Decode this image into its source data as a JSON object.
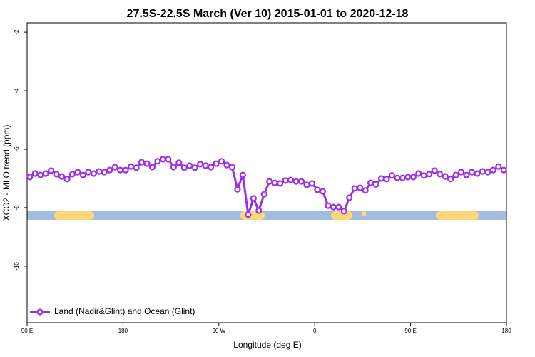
{
  "chart_data": {
    "type": "line",
    "title": "27.5S-22.5S March (Ver 10)   2015-01-01 to 2020-12-18",
    "x_label": "Longitude (deg E)",
    "y_label": "XCO2 - MLO trend (ppm)",
    "xlim": [
      90,
      540
    ],
    "ylim": [
      -11.93,
      -1.68
    ],
    "xticks": [
      {
        "value": 90,
        "label": "90 E"
      },
      180,
      {
        "value": 270,
        "label": "90 W"
      },
      {
        "value": 360,
        "label": "0"
      },
      {
        "value": 450,
        "label": "90 E"
      },
      {
        "value": 540,
        "label": "180"
      }
    ],
    "yticks": [
      -2,
      -4,
      -6,
      -8,
      -10
    ],
    "legend": "bottom-left",
    "x": [
      92.5,
      97.5,
      102.5,
      107.5,
      112.5,
      117.5,
      122.5,
      127.5,
      132.5,
      137.5,
      142.5,
      147.5,
      152.5,
      157.5,
      162.5,
      167.5,
      172.5,
      177.5,
      182.5,
      187.5,
      192.5,
      197.5,
      202.5,
      207.5,
      212.5,
      217.5,
      222.5,
      227.5,
      232.5,
      237.5,
      242.5,
      247.5,
      252.5,
      257.5,
      262.5,
      267.5,
      272.5,
      277.5,
      282.5,
      287.5,
      292.5,
      297.5,
      302.5,
      307.5,
      312.5,
      317.5,
      322.5,
      327.5,
      332.5,
      337.5,
      342.5,
      347.5,
      352.5,
      357.5,
      362.5,
      367.5,
      372.5,
      377.5,
      382.5,
      387.5,
      392.5,
      397.5,
      402.5,
      407.5,
      412.5,
      417.5,
      422.5,
      427.5,
      432.5,
      437.5,
      442.5,
      447.5,
      452.5,
      457.5,
      462.5,
      467.5,
      472.5,
      477.5,
      482.5,
      487.5,
      492.5,
      497.5,
      502.5,
      507.5,
      512.5,
      517.5,
      522.5,
      527.5,
      532.5,
      537.5
    ],
    "series": [
      {
        "name": "Land (Nadir&Glint) and Ocean (Glint)",
        "color": "#9b30e8",
        "values": [
          -6.95,
          -6.83,
          -6.88,
          -6.83,
          -6.73,
          -6.85,
          -6.93,
          -7.02,
          -6.85,
          -6.78,
          -6.88,
          -6.78,
          -6.83,
          -6.76,
          -6.78,
          -6.71,
          -6.61,
          -6.71,
          -6.71,
          -6.59,
          -6.63,
          -6.44,
          -6.49,
          -6.61,
          -6.41,
          -6.34,
          -6.34,
          -6.61,
          -6.46,
          -6.63,
          -6.56,
          -6.63,
          -6.51,
          -6.56,
          -6.61,
          -6.49,
          -6.41,
          -6.54,
          -6.61,
          -7.37,
          -6.88,
          -8.24,
          -7.68,
          -8.1,
          -7.54,
          -7.1,
          -7.15,
          -7.17,
          -7.07,
          -7.05,
          -7.1,
          -7.1,
          -7.22,
          -7.17,
          -7.39,
          -7.44,
          -7.93,
          -7.98,
          -7.98,
          -8.12,
          -7.66,
          -7.34,
          -7.32,
          -7.41,
          -7.15,
          -7.2,
          -7.0,
          -7.02,
          -6.9,
          -6.98,
          -6.98,
          -6.95,
          -6.95,
          -6.83,
          -6.9,
          -6.85,
          -6.73,
          -6.85,
          -6.93,
          -7.02,
          -6.88,
          -6.78,
          -6.88,
          -6.78,
          -6.83,
          -6.76,
          -6.78,
          -6.71,
          -6.59,
          -6.71
        ]
      }
    ]
  }
}
